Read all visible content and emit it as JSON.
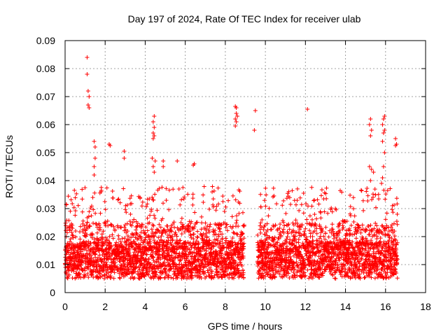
{
  "chart_data": {
    "type": "scatter",
    "title": "Day 197 of 2024, Rate Of TEC Index for receiver ulab",
    "xlabel": "GPS time / hours",
    "ylabel": "ROTI / TECUs",
    "xlim": [
      0,
      18
    ],
    "ylim": [
      0,
      0.09
    ],
    "x_ticks": [
      "0",
      "2",
      "4",
      "6",
      "8",
      "10",
      "12",
      "14",
      "16",
      "18"
    ],
    "y_ticks": [
      "0",
      "0.01",
      "0.02",
      "0.03",
      "0.04",
      "0.05",
      "0.06",
      "0.07",
      "0.08",
      "0.09"
    ],
    "grid": true,
    "marker": "plus",
    "color": "#ff0000",
    "dense_band": {
      "x_start": 0.0,
      "x_end": 16.6,
      "y_min": 0.002,
      "y_max": 0.038,
      "gap_x": [
        8.95,
        9.6
      ]
    },
    "notable_points": [
      {
        "x": 1.1,
        "y": 0.084
      },
      {
        "x": 1.1,
        "y": 0.078
      },
      {
        "x": 1.15,
        "y": 0.072
      },
      {
        "x": 1.2,
        "y": 0.07
      },
      {
        "x": 1.15,
        "y": 0.067
      },
      {
        "x": 1.2,
        "y": 0.066
      },
      {
        "x": 1.45,
        "y": 0.054
      },
      {
        "x": 1.5,
        "y": 0.052
      },
      {
        "x": 1.5,
        "y": 0.048
      },
      {
        "x": 1.45,
        "y": 0.045
      },
      {
        "x": 1.45,
        "y": 0.042
      },
      {
        "x": 2.2,
        "y": 0.053
      },
      {
        "x": 2.25,
        "y": 0.0525
      },
      {
        "x": 2.95,
        "y": 0.0505
      },
      {
        "x": 2.95,
        "y": 0.048
      },
      {
        "x": 4.45,
        "y": 0.063
      },
      {
        "x": 4.4,
        "y": 0.061
      },
      {
        "x": 4.45,
        "y": 0.059
      },
      {
        "x": 4.4,
        "y": 0.057
      },
      {
        "x": 4.45,
        "y": 0.056
      },
      {
        "x": 4.4,
        "y": 0.055
      },
      {
        "x": 4.35,
        "y": 0.048
      },
      {
        "x": 4.5,
        "y": 0.047
      },
      {
        "x": 4.4,
        "y": 0.045
      },
      {
        "x": 4.45,
        "y": 0.043
      },
      {
        "x": 4.9,
        "y": 0.047
      },
      {
        "x": 4.9,
        "y": 0.045
      },
      {
        "x": 5.6,
        "y": 0.047
      },
      {
        "x": 6.45,
        "y": 0.046
      },
      {
        "x": 6.4,
        "y": 0.0455
      },
      {
        "x": 8.5,
        "y": 0.0665
      },
      {
        "x": 8.55,
        "y": 0.066
      },
      {
        "x": 8.55,
        "y": 0.064
      },
      {
        "x": 8.6,
        "y": 0.063
      },
      {
        "x": 8.5,
        "y": 0.062
      },
      {
        "x": 8.55,
        "y": 0.061
      },
      {
        "x": 8.5,
        "y": 0.0595
      },
      {
        "x": 9.5,
        "y": 0.065
      },
      {
        "x": 9.45,
        "y": 0.058
      },
      {
        "x": 12.1,
        "y": 0.0655
      },
      {
        "x": 15.25,
        "y": 0.062
      },
      {
        "x": 15.2,
        "y": 0.06
      },
      {
        "x": 15.3,
        "y": 0.058
      },
      {
        "x": 15.25,
        "y": 0.056
      },
      {
        "x": 15.2,
        "y": 0.045
      },
      {
        "x": 15.3,
        "y": 0.044
      },
      {
        "x": 15.4,
        "y": 0.043
      },
      {
        "x": 15.25,
        "y": 0.04
      },
      {
        "x": 15.95,
        "y": 0.063
      },
      {
        "x": 15.9,
        "y": 0.062
      },
      {
        "x": 15.85,
        "y": 0.06
      },
      {
        "x": 15.95,
        "y": 0.058
      },
      {
        "x": 15.9,
        "y": 0.057
      },
      {
        "x": 15.85,
        "y": 0.054
      },
      {
        "x": 15.95,
        "y": 0.05
      },
      {
        "x": 15.9,
        "y": 0.045
      },
      {
        "x": 15.85,
        "y": 0.041
      },
      {
        "x": 15.8,
        "y": 0.039
      },
      {
        "x": 16.5,
        "y": 0.055
      },
      {
        "x": 16.55,
        "y": 0.053
      },
      {
        "x": 16.5,
        "y": 0.0525
      }
    ]
  }
}
